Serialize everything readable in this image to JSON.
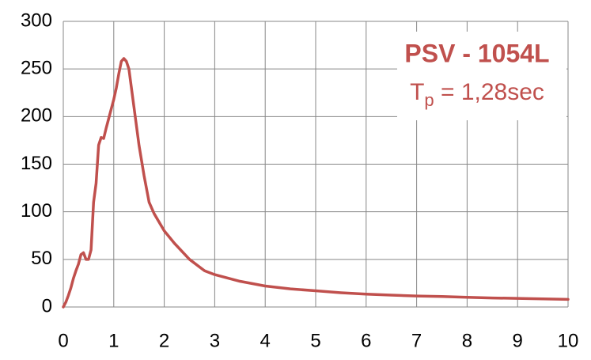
{
  "chart_data": {
    "type": "line",
    "annotation_title": "PSV - 1054L",
    "annotation_parts": [
      "T",
      "p",
      " = 1,28sec"
    ],
    "x": [
      0,
      0.05,
      0.1,
      0.15,
      0.2,
      0.25,
      0.3,
      0.35,
      0.4,
      0.45,
      0.5,
      0.55,
      0.6,
      0.65,
      0.7,
      0.75,
      0.8,
      0.85,
      0.9,
      0.95,
      1.0,
      1.05,
      1.1,
      1.15,
      1.2,
      1.25,
      1.3,
      1.4,
      1.5,
      1.6,
      1.7,
      1.8,
      2.0,
      2.2,
      2.5,
      2.8,
      3.0,
      3.5,
      4.0,
      4.5,
      5.0,
      5.5,
      6.0,
      6.5,
      7.0,
      7.5,
      8.0,
      8.5,
      9.0,
      9.5,
      10.0
    ],
    "series": [
      {
        "color": "#c0504d",
        "values": [
          0,
          5,
          12,
          20,
          30,
          38,
          45,
          55,
          57,
          50,
          50,
          60,
          110,
          130,
          170,
          178,
          177,
          188,
          198,
          208,
          218,
          230,
          245,
          258,
          261,
          258,
          250,
          210,
          170,
          138,
          110,
          98,
          80,
          67,
          50,
          38,
          34,
          27,
          22,
          19,
          17,
          15,
          13.5,
          12.5,
          11.5,
          11,
          10.2,
          9.5,
          9,
          8.5,
          8
        ]
      }
    ],
    "xlim": [
      0,
      10
    ],
    "xticks": [
      0,
      1,
      2,
      3,
      4,
      5,
      6,
      7,
      8,
      9,
      10
    ],
    "ylim": [
      0,
      300
    ],
    "yticks": [
      0,
      50,
      100,
      150,
      200,
      250,
      300
    ],
    "grid": true
  }
}
